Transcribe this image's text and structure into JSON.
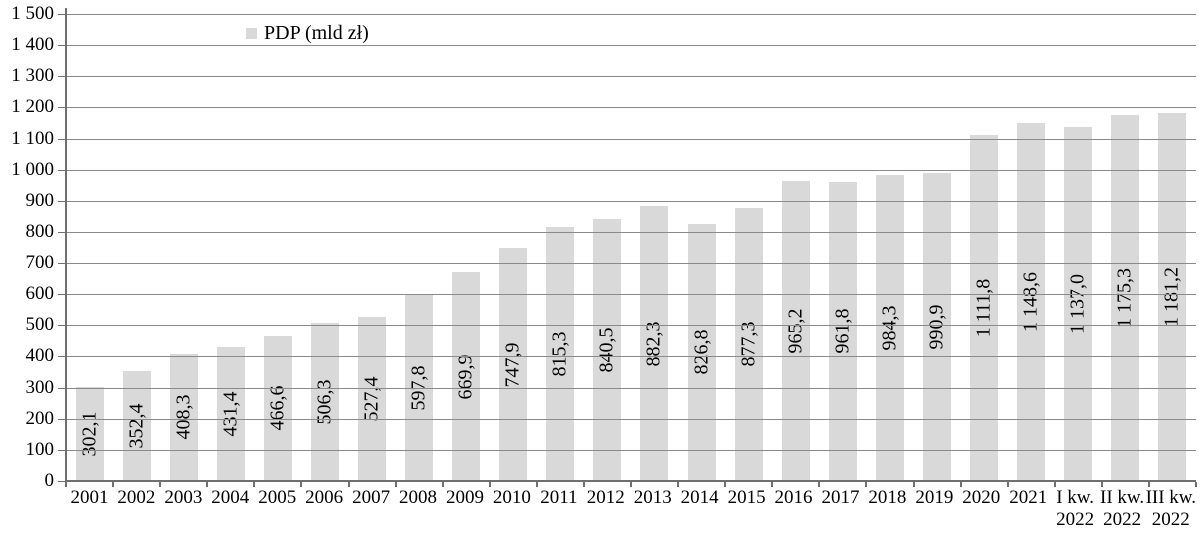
{
  "chart_data": {
    "type": "bar",
    "title": "",
    "legend": {
      "label": "PDP (mld zł)",
      "position": "top"
    },
    "categories": [
      [
        "2001"
      ],
      [
        "2002"
      ],
      [
        "2003"
      ],
      [
        "2004"
      ],
      [
        "2005"
      ],
      [
        "2006"
      ],
      [
        "2007"
      ],
      [
        "2008"
      ],
      [
        "2009"
      ],
      [
        "2010"
      ],
      [
        "2011"
      ],
      [
        "2012"
      ],
      [
        "2013"
      ],
      [
        "2014"
      ],
      [
        "2015"
      ],
      [
        "2016"
      ],
      [
        "2017"
      ],
      [
        "2018"
      ],
      [
        "2019"
      ],
      [
        "2020"
      ],
      [
        "2021"
      ],
      [
        "I kw.",
        "2022"
      ],
      [
        "II kw.",
        "2022"
      ],
      [
        "III kw.",
        "2022"
      ]
    ],
    "values": [
      302.1,
      352.4,
      408.3,
      431.4,
      466.6,
      506.3,
      527.4,
      597.8,
      669.9,
      747.9,
      815.3,
      840.5,
      882.3,
      826.8,
      877.3,
      965.2,
      961.8,
      984.3,
      990.9,
      1111.8,
      1148.6,
      1137.0,
      1175.3,
      1181.2
    ],
    "value_labels": [
      "302,1",
      "352,4",
      "408,3",
      "431,4",
      "466,6",
      "506,3",
      "527,4",
      "597,8",
      "669,9",
      "747,9",
      "815,3",
      "840,5",
      "882,3",
      "826,8",
      "877,3",
      "965,2",
      "961,8",
      "984,3",
      "990,9",
      "1 111,8",
      "1 148,6",
      "1 137,0",
      "1 175,3",
      "1 181,2"
    ],
    "value_label_rotation_deg": -90,
    "xlabel": "",
    "ylabel": "",
    "ylim": [
      0,
      1500
    ],
    "ytick_step": 100,
    "ytick_labels_top_to_bottom": [
      "1 500",
      "1 400",
      "1 300",
      "1 200",
      "1 100",
      "1 000",
      "900",
      "800",
      "700",
      "600",
      "500",
      "400",
      "300",
      "200",
      "100",
      "0"
    ],
    "grid": true,
    "gridlines_drawn_over_bars": true
  },
  "colors": {
    "background": "#ffffff",
    "bar_fill": "#d9d9d9",
    "gridline": "#8a8a8a",
    "axis": "#6f6f6f",
    "text": "#000000"
  }
}
